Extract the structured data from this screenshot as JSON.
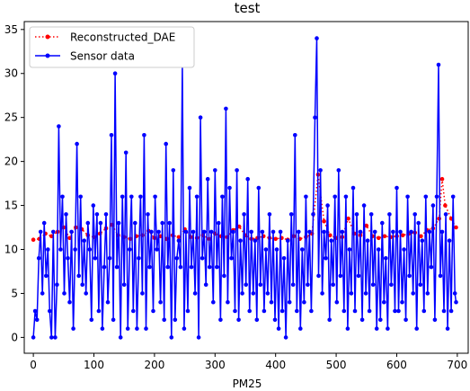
{
  "chart_data": {
    "type": "line",
    "title": "test",
    "xlabel": "PM25",
    "ylabel": "",
    "xlim": [
      -15,
      718
    ],
    "ylim": [
      -1.8,
      35.9
    ],
    "x_ticks": [
      0,
      100,
      200,
      300,
      400,
      500,
      600,
      700
    ],
    "y_ticks": [
      0,
      5,
      10,
      15,
      20,
      25,
      30,
      35
    ],
    "x_tick_labels": [
      "0",
      "100",
      "200",
      "300",
      "400",
      "500",
      "600",
      "700"
    ],
    "y_tick_labels": [
      "0",
      "5",
      "10",
      "15",
      "20",
      "25",
      "30",
      "35"
    ],
    "grid": false,
    "legend_position": "top-left",
    "legend": [
      "Reconstructed_DAE",
      "Sensor data"
    ],
    "colors": {
      "reconstructed": "#ff0000",
      "sensor": "#0000ff"
    },
    "series": [
      {
        "name": "Reconstructed_DAE",
        "style": "dotted-red-markers",
        "x": [
          0,
          10,
          20,
          30,
          40,
          50,
          60,
          70,
          80,
          90,
          100,
          110,
          120,
          130,
          140,
          150,
          160,
          170,
          180,
          190,
          200,
          210,
          220,
          230,
          240,
          250,
          260,
          270,
          280,
          290,
          300,
          310,
          320,
          330,
          340,
          350,
          360,
          370,
          380,
          390,
          400,
          410,
          420,
          430,
          440,
          450,
          460,
          470,
          480,
          490,
          500,
          510,
          520,
          530,
          540,
          550,
          560,
          570,
          580,
          590,
          600,
          610,
          620,
          630,
          640,
          650,
          660,
          670,
          675,
          680,
          690,
          698
        ],
        "values": [
          11.1,
          11.2,
          11.8,
          11.5,
          12.0,
          12.5,
          11.3,
          12.5,
          12.3,
          11.6,
          11.4,
          11.8,
          12.4,
          12.8,
          11.6,
          11.4,
          11.2,
          11.5,
          11.6,
          12.1,
          11.3,
          11.5,
          11.2,
          11.6,
          11.4,
          12.3,
          11.4,
          11.3,
          11.6,
          11.2,
          11.8,
          11.5,
          11.4,
          12.2,
          12.6,
          11.6,
          11.2,
          11.3,
          11.5,
          11.3,
          11.2,
          11.3,
          11.1,
          11.5,
          11.2,
          11.4,
          11.8,
          18.5,
          13.2,
          11.6,
          11.3,
          11.4,
          13.5,
          11.8,
          11.6,
          12.7,
          11.5,
          11.3,
          11.5,
          11.4,
          11.5,
          11.6,
          11.8,
          11.9,
          11.5,
          12.2,
          12.4,
          13.5,
          18.0,
          15.0,
          13.5,
          12.5
        ]
      },
      {
        "name": "Sensor data",
        "style": "solid-blue-markers",
        "x": [
          0,
          3,
          6,
          9,
          12,
          15,
          18,
          21,
          24,
          27,
          30,
          33,
          36,
          39,
          42,
          45,
          48,
          51,
          54,
          57,
          60,
          63,
          66,
          69,
          72,
          75,
          78,
          81,
          84,
          87,
          90,
          93,
          96,
          99,
          102,
          105,
          108,
          111,
          114,
          117,
          120,
          123,
          126,
          129,
          132,
          135,
          138,
          141,
          144,
          147,
          150,
          153,
          156,
          159,
          162,
          165,
          168,
          171,
          174,
          177,
          180,
          183,
          186,
          189,
          192,
          195,
          198,
          201,
          204,
          207,
          210,
          213,
          216,
          219,
          222,
          225,
          228,
          231,
          234,
          237,
          240,
          243,
          246,
          249,
          252,
          255,
          258,
          261,
          264,
          267,
          270,
          273,
          276,
          279,
          282,
          285,
          288,
          291,
          294,
          297,
          300,
          303,
          306,
          309,
          312,
          315,
          318,
          321,
          324,
          327,
          330,
          333,
          336,
          339,
          342,
          345,
          348,
          351,
          354,
          357,
          360,
          363,
          366,
          369,
          372,
          375,
          378,
          381,
          384,
          387,
          390,
          393,
          396,
          399,
          402,
          405,
          408,
          411,
          414,
          417,
          420,
          423,
          426,
          429,
          432,
          435,
          438,
          441,
          444,
          447,
          450,
          453,
          456,
          459,
          462,
          465,
          468,
          471,
          474,
          477,
          480,
          483,
          486,
          489,
          492,
          495,
          498,
          501,
          504,
          507,
          510,
          513,
          516,
          519,
          522,
          525,
          528,
          531,
          534,
          537,
          540,
          543,
          546,
          549,
          552,
          555,
          558,
          561,
          564,
          567,
          570,
          573,
          576,
          579,
          582,
          585,
          588,
          591,
          594,
          597,
          600,
          603,
          606,
          609,
          612,
          615,
          618,
          621,
          624,
          627,
          630,
          633,
          636,
          639,
          642,
          645,
          648,
          651,
          654,
          657,
          660,
          663,
          666,
          669,
          672,
          675,
          678,
          681,
          684,
          687,
          690,
          693,
          696,
          698
        ],
        "values": [
          0,
          3,
          2,
          9,
          12,
          5,
          13,
          7,
          10,
          3,
          0,
          12,
          0,
          6,
          24,
          10,
          16,
          5,
          14,
          9,
          4,
          12,
          1,
          10,
          22,
          7,
          16,
          6,
          11,
          5,
          13,
          10,
          2,
          15,
          9,
          14,
          3,
          13,
          1,
          8,
          14,
          4,
          9,
          23,
          2,
          30,
          8,
          13,
          0,
          16,
          6,
          21,
          1,
          10,
          16,
          3,
          13,
          1,
          9,
          16,
          5,
          23,
          1,
          14,
          8,
          12,
          3,
          16,
          10,
          12,
          4,
          13,
          2,
          22,
          8,
          13,
          0,
          19,
          2,
          9,
          11,
          8,
          31,
          1,
          12,
          3,
          17,
          8,
          12,
          5,
          16,
          0,
          25,
          9,
          12,
          6,
          18,
          8,
          12,
          4,
          19,
          8,
          13,
          2,
          16,
          7,
          26,
          4,
          17,
          9,
          12,
          3,
          19,
          2,
          11,
          5,
          14,
          6,
          18,
          3,
          12,
          5,
          11,
          2,
          17,
          6,
          12,
          3,
          10,
          5,
          14,
          4,
          12,
          2,
          10,
          1,
          12,
          3,
          9,
          0,
          11,
          4,
          14,
          6,
          23,
          3,
          12,
          1,
          10,
          4,
          16,
          6,
          12,
          3,
          14,
          25,
          34,
          7,
          19,
          5,
          12,
          9,
          15,
          2,
          11,
          6,
          16,
          4,
          19,
          7,
          12,
          3,
          16,
          1,
          10,
          5,
          17,
          3,
          14,
          7,
          12,
          2,
          15,
          5,
          11,
          3,
          14,
          6,
          12,
          1,
          10,
          2,
          13,
          4,
          9,
          1,
          14,
          6,
          12,
          3,
          17,
          3,
          12,
          4,
          10,
          2,
          16,
          7,
          12,
          5,
          14,
          1,
          13,
          6,
          11,
          3,
          16,
          5,
          12,
          8,
          15,
          2,
          16,
          31,
          7,
          12,
          3,
          14,
          1,
          11,
          3,
          16,
          5,
          4
        ]
      }
    ]
  }
}
